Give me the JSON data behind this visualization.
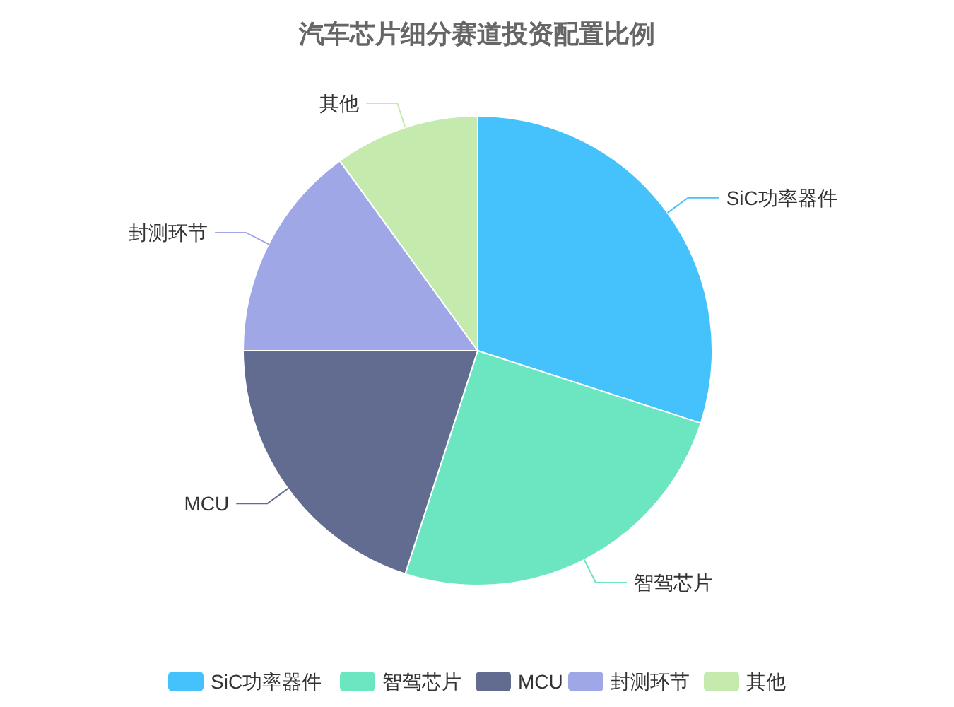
{
  "chart_data": {
    "type": "pie",
    "title": "汽车芯片细分赛道投资配置比例",
    "categories": [
      "SiC功率器件",
      "智驾芯片",
      "MCU",
      "封测环节",
      "其他"
    ],
    "values": [
      30,
      25,
      20,
      15,
      10
    ],
    "colors": [
      "#45c2fb",
      "#6be6c1",
      "#626c91",
      "#a0a7e6",
      "#c4ebad"
    ],
    "legend": "bottom"
  }
}
